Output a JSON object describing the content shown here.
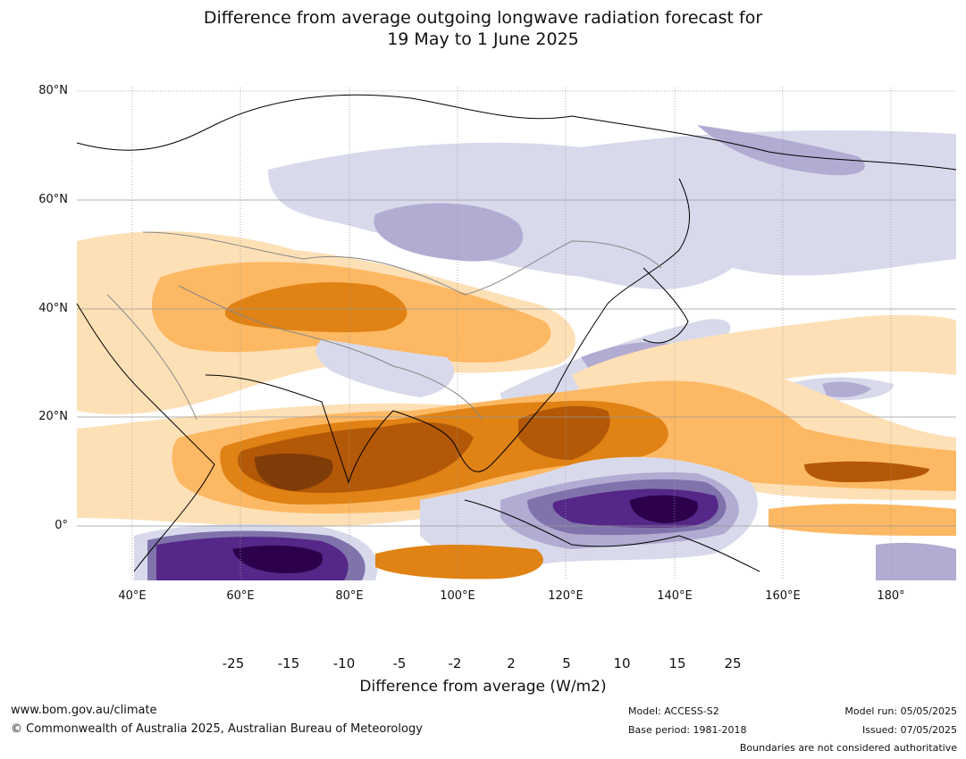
{
  "title": {
    "line1": "Difference from average outgoing longwave radiation forecast for",
    "line2": "19 May to 1 June 2025"
  },
  "map": {
    "lat_labels": [
      "80°N",
      "60°N",
      "40°N",
      "20°N",
      "0°"
    ],
    "lon_labels": [
      "40°E",
      "60°E",
      "80°E",
      "100°E",
      "120°E",
      "140°E",
      "160°E",
      "180°"
    ]
  },
  "colorbar": {
    "ticks": [
      "-25",
      "-15",
      "-10",
      "-5",
      "-2",
      "2",
      "5",
      "10",
      "15",
      "25"
    ],
    "colors": {
      "below_min": "#2d004b",
      "c1": "#542788",
      "c2": "#8073ac",
      "c3": "#b2abd2",
      "c4": "#d8daeb",
      "c5": "#ffffff",
      "c6": "#fee0b6",
      "c7": "#fdb863",
      "c8": "#e08214",
      "c9": "#b35806",
      "above_max": "#7f3b08"
    },
    "label": "Difference from average (W/m2)"
  },
  "footer": {
    "website": "www.bom.gov.au/climate",
    "copyright": "© Commonwealth of Australia 2025, Australian Bureau of Meteorology",
    "model": "Model: ACCESS-S2",
    "base_period": "Base period: 1981-2018",
    "model_run": "Model run: 05/05/2025",
    "issued": "Issued: 07/05/2025",
    "boundaries_note": "Boundaries are not considered authoritative"
  }
}
